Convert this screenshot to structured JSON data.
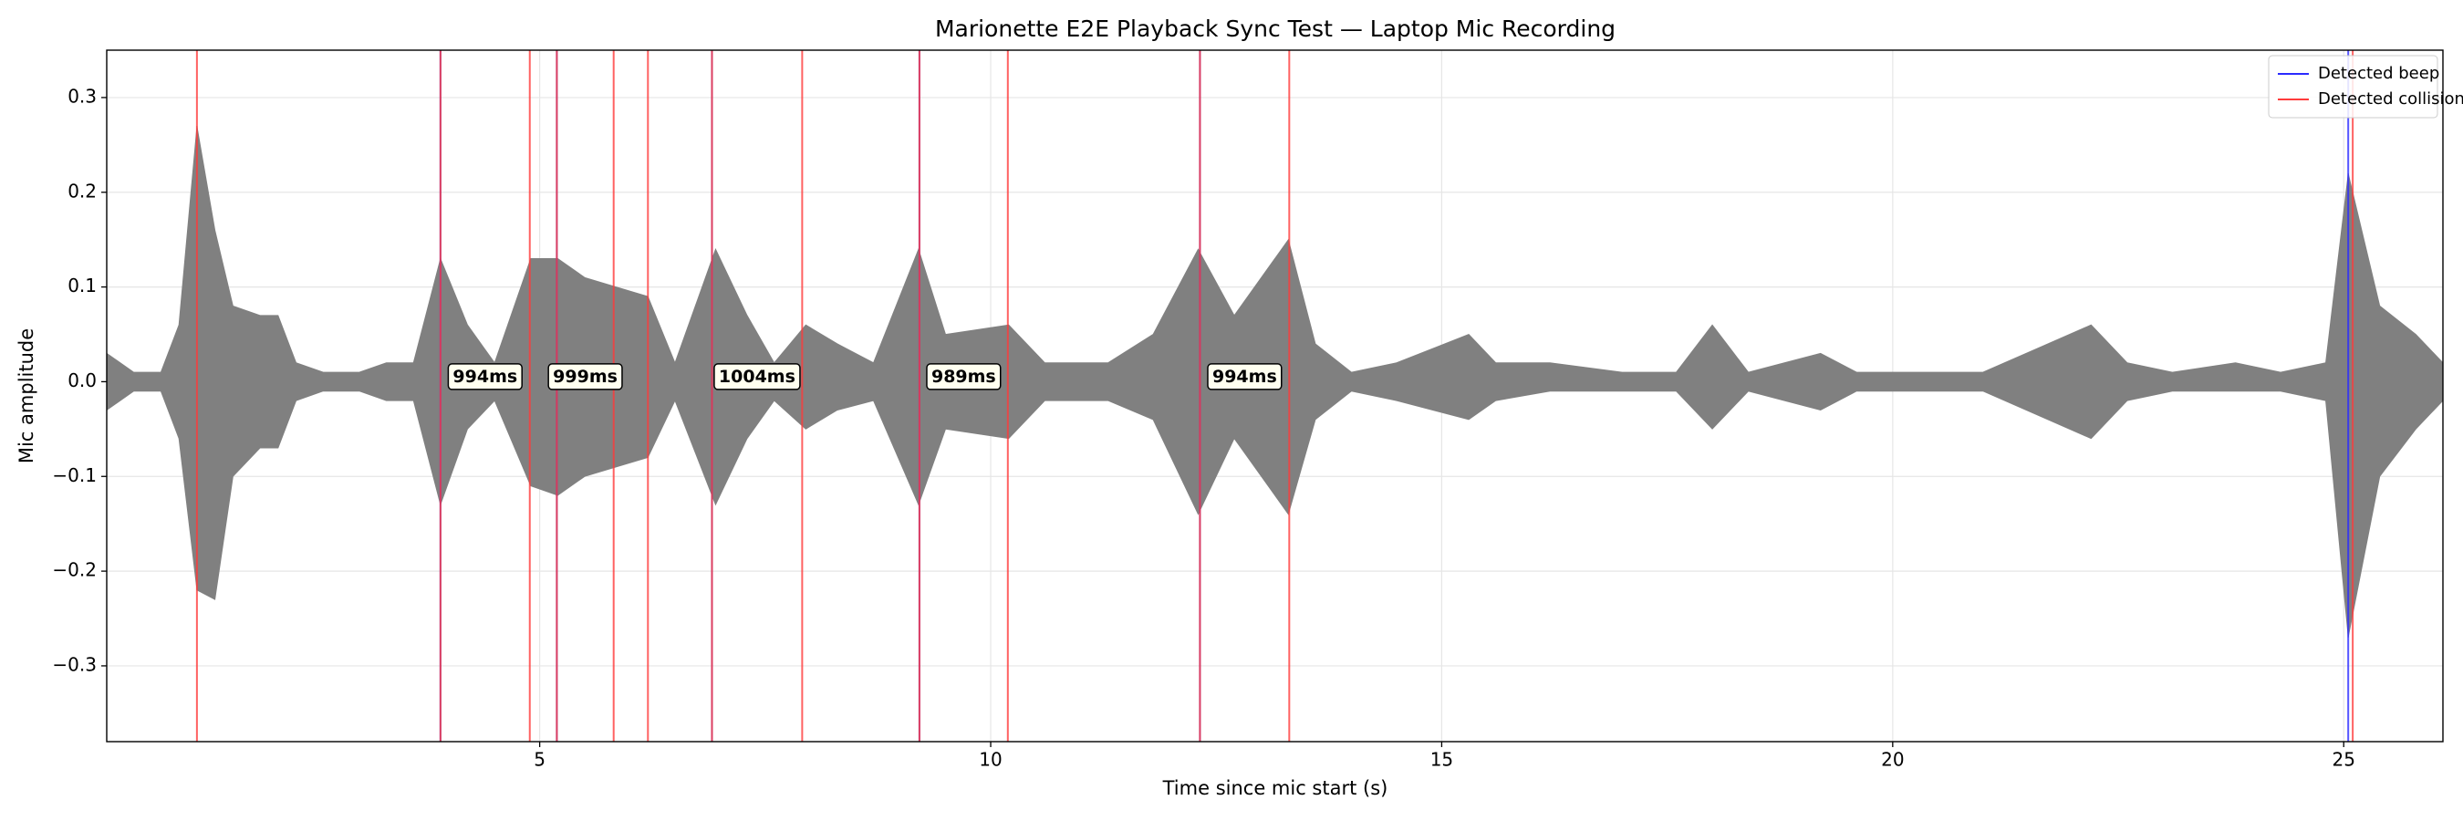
{
  "chart_data": {
    "type": "waveform",
    "title": "Marionette E2E Playback Sync Test — Laptop Mic Recording",
    "x_label": "Time since mic start (s)",
    "y_label": "Mic amplitude",
    "xlim": [
      0.2,
      26.1
    ],
    "ylim": [
      -0.38,
      0.35
    ],
    "xticks": [
      5,
      10,
      15,
      20,
      25
    ],
    "yticks": [
      {
        "value": -0.3,
        "label": "−0.3"
      },
      {
        "value": -0.2,
        "label": "−0.2"
      },
      {
        "value": -0.1,
        "label": "−0.1"
      },
      {
        "value": 0,
        "label": "0.0"
      },
      0.1,
      0.2,
      0.3
    ],
    "grid": true,
    "legend": "upper right",
    "waveform": {
      "color": "#808080",
      "x": [
        0.2,
        0.5,
        0.8,
        1.0,
        1.2,
        1.4,
        1.6,
        1.9,
        2.1,
        2.3,
        2.6,
        3.0,
        3.3,
        3.6,
        3.9,
        4.2,
        4.5,
        4.9,
        5.2,
        5.5,
        5.85,
        6.2,
        6.5,
        6.95,
        7.3,
        7.6,
        7.95,
        8.3,
        8.7,
        9.2,
        9.5,
        10.2,
        10.6,
        11.3,
        11.8,
        12.3,
        12.7,
        13.3,
        13.6,
        14.0,
        14.5,
        15.3,
        15.6,
        16.2,
        17.0,
        17.6,
        18.0,
        18.4,
        18.8,
        19.2,
        19.6,
        20.5,
        21.0,
        22.2,
        22.6,
        23.1,
        23.8,
        24.3,
        24.8,
        25.05,
        25.4,
        25.8,
        26.1
      ],
      "upper": [
        0.03,
        0.01,
        0.01,
        0.06,
        0.27,
        0.16,
        0.08,
        0.07,
        0.07,
        0.02,
        0.01,
        0.01,
        0.02,
        0.02,
        0.13,
        0.06,
        0.02,
        0.13,
        0.13,
        0.11,
        0.1,
        0.09,
        0.02,
        0.14,
        0.07,
        0.02,
        0.06,
        0.04,
        0.02,
        0.14,
        0.05,
        0.06,
        0.02,
        0.02,
        0.05,
        0.14,
        0.07,
        0.15,
        0.04,
        0.01,
        0.02,
        0.05,
        0.02,
        0.02,
        0.01,
        0.01,
        0.06,
        0.01,
        0.02,
        0.03,
        0.01,
        0.01,
        0.01,
        0.06,
        0.02,
        0.01,
        0.02,
        0.01,
        0.02,
        0.22,
        0.08,
        0.05,
        0.02
      ],
      "lower": [
        -0.03,
        -0.01,
        -0.01,
        -0.06,
        -0.22,
        -0.23,
        -0.1,
        -0.07,
        -0.07,
        -0.02,
        -0.01,
        -0.01,
        -0.02,
        -0.02,
        -0.13,
        -0.05,
        -0.02,
        -0.11,
        -0.12,
        -0.1,
        -0.09,
        -0.08,
        -0.02,
        -0.13,
        -0.06,
        -0.02,
        -0.05,
        -0.03,
        -0.02,
        -0.13,
        -0.05,
        -0.06,
        -0.02,
        -0.02,
        -0.04,
        -0.14,
        -0.06,
        -0.14,
        -0.04,
        -0.01,
        -0.02,
        -0.04,
        -0.02,
        -0.01,
        -0.01,
        -0.01,
        -0.05,
        -0.01,
        -0.02,
        -0.03,
        -0.01,
        -0.01,
        -0.01,
        -0.06,
        -0.02,
        -0.01,
        -0.01,
        -0.01,
        -0.02,
        -0.27,
        -0.1,
        -0.05,
        -0.02
      ]
    },
    "series": [
      {
        "name": "Detected beep",
        "color": "#2b2bff",
        "x": [
          3.9,
          5.19,
          6.91,
          9.21,
          12.32,
          25.05
        ]
      },
      {
        "name": "Detected collision",
        "color": "#ff3b3b",
        "x": [
          1.2,
          3.9,
          4.89,
          5.19,
          5.82,
          6.2,
          6.91,
          7.91,
          9.21,
          10.19,
          12.32,
          13.31,
          25.1
        ]
      }
    ],
    "annotation_color": "#800080",
    "annotations": [
      "994ms",
      "999ms",
      "1004ms",
      "989ms",
      "994ms"
    ]
  }
}
